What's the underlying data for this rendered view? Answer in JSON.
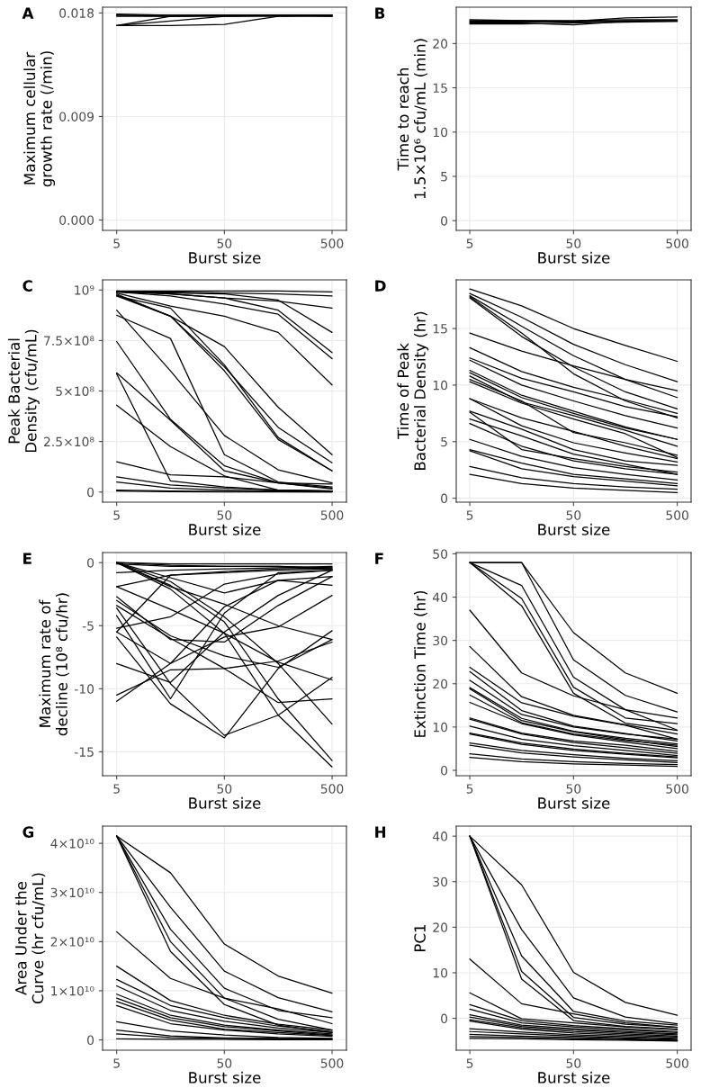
{
  "chart_data": [
    {
      "type": "line",
      "title": "A",
      "xlabel": "Burst size",
      "ylabel": "Maximum cellular\ngrowth rate (/min)",
      "log": "x",
      "grid": true,
      "x": [
        5,
        15.8,
        50,
        158,
        500
      ],
      "xlim": [
        3.7,
        680
      ],
      "xticks": [
        5,
        50,
        500
      ],
      "ylim": [
        -0.0009,
        0.0185
      ],
      "yticks": [
        {
          "value": 0,
          "label": "0.000"
        },
        0.009,
        0.018
      ],
      "series": [
        {
          "color": "#000000",
          "values": [
            0.0178,
            0.0178,
            0.0178,
            0.0178,
            0.0178
          ]
        },
        {
          "color": "#000000",
          "values": [
            0.0177,
            0.0177,
            0.0178,
            0.0178,
            0.0178
          ]
        },
        {
          "color": "#000000",
          "values": [
            0.0178,
            0.0177,
            0.0177,
            0.0177,
            0.0177
          ]
        },
        {
          "color": "#000000",
          "values": [
            0.0169,
            0.0177,
            0.0178,
            0.0178,
            0.0178
          ]
        },
        {
          "color": "#000000",
          "values": [
            0.0169,
            0.0169,
            0.017,
            0.0177,
            0.0178
          ]
        },
        {
          "color": "#000000",
          "values": [
            0.0169,
            0.0173,
            0.0177,
            0.0178,
            0.0178
          ]
        },
        {
          "color": "#000000",
          "values": [
            0.0179,
            0.0178,
            0.0178,
            0.0178,
            0.0177
          ]
        }
      ]
    },
    {
      "type": "line",
      "title": "B",
      "xlabel": "Burst size",
      "ylabel": "Time to reach\n1.5×10⁶ cfu/mL (min)",
      "log": "x",
      "grid": true,
      "x": [
        5,
        15.8,
        50,
        158,
        500
      ],
      "xlim": [
        3.7,
        680
      ],
      "xticks": [
        5,
        50,
        500
      ],
      "ylim": [
        -1.1,
        24.1
      ],
      "yticks": [
        0,
        5,
        10,
        15,
        20
      ],
      "series": [
        {
          "color": "#000000",
          "values": [
            22.7,
            22.6,
            22.6,
            22.7,
            22.7
          ]
        },
        {
          "color": "#000000",
          "values": [
            22.5,
            22.5,
            22.4,
            22.6,
            22.6
          ]
        },
        {
          "color": "#000000",
          "values": [
            22.3,
            22.3,
            22.1,
            22.5,
            22.6
          ]
        },
        {
          "color": "#000000",
          "values": [
            22.6,
            22.6,
            22.5,
            22.9,
            23.0
          ]
        },
        {
          "color": "#000000",
          "values": [
            22.4,
            22.4,
            22.5,
            22.5,
            22.5
          ]
        },
        {
          "color": "#000000",
          "values": [
            22.2,
            22.2,
            22.3,
            22.4,
            22.5
          ]
        }
      ]
    },
    {
      "type": "line",
      "title": "C",
      "xlabel": "Burst size",
      "ylabel": "Peak Bacterial\nDensity (cfu/mL)",
      "log": "x",
      "grid": true,
      "x": [
        5,
        15.8,
        50,
        158,
        500
      ],
      "xlim": [
        3.7,
        680
      ],
      "xticks": [
        5,
        50,
        500
      ],
      "ylim": [
        -50000000.0,
        1050000000.0
      ],
      "yticks": [
        0,
        {
          "value": 250000000.0,
          "label": "2.5×10⁸"
        },
        {
          "value": 500000000.0,
          "label": "5×10⁸"
        },
        {
          "value": 750000000.0,
          "label": "7.5×10⁸"
        },
        {
          "value": 1000000000.0,
          "label": "10⁹"
        }
      ],
      "series": [
        {
          "color": "#000000",
          "values": [
            995000000.0,
            995000000.0,
            995000000.0,
            995000000.0,
            990000000.0
          ]
        },
        {
          "color": "#000000",
          "values": [
            990000000.0,
            990000000.0,
            985000000.0,
            980000000.0,
            970000000.0
          ]
        },
        {
          "color": "#000000",
          "values": [
            990000000.0,
            980000000.0,
            960000000.0,
            945000000.0,
            910000000.0
          ]
        },
        {
          "color": "#000000",
          "values": [
            985000000.0,
            920000000.0,
            870000000.0,
            790000000.0,
            530000000.0
          ]
        },
        {
          "color": "#000000",
          "values": [
            980000000.0,
            870000000.0,
            720000000.0,
            420000000.0,
            185000000.0
          ]
        },
        {
          "color": "#000000",
          "values": [
            975000000.0,
            870000000.0,
            620000000.0,
            320000000.0,
            145000000.0
          ]
        },
        {
          "color": "#000000",
          "values": [
            970000000.0,
            910000000.0,
            630000000.0,
            270000000.0,
            105000000.0
          ]
        },
        {
          "color": "#000000",
          "values": [
            970000000.0,
            870000000.0,
            600000000.0,
            260000000.0,
            105000000.0
          ]
        },
        {
          "color": "#000000",
          "values": [
            990000000.0,
            970000000.0,
            930000000.0,
            880000000.0,
            660000000.0
          ]
        },
        {
          "color": "#000000",
          "values": [
            995000000.0,
            980000000.0,
            960000000.0,
            900000000.0,
            690000000.0
          ]
        },
        {
          "color": "#000000",
          "values": [
            990000000.0,
            985000000.0,
            980000000.0,
            950000000.0,
            790000000.0
          ]
        },
        {
          "color": "#000000",
          "values": [
            900000000.0,
            600000000.0,
            280000000.0,
            110000000.0,
            45000000.0
          ]
        },
        {
          "color": "#000000",
          "values": [
            875000000.0,
            760000000.0,
            185000000.0,
            50000000.0,
            25000000.0
          ]
        },
        {
          "color": "#000000",
          "values": [
            745000000.0,
            360000000.0,
            130000000.0,
            45000000.0,
            20000000.0
          ]
        },
        {
          "color": "#000000",
          "values": [
            590000000.0,
            355000000.0,
            105000000.0,
            45000000.0,
            15000000.0
          ]
        },
        {
          "color": "#000000",
          "values": [
            585000000.0,
            55000000.0,
            25000000.0,
            10000000.0,
            5000000.0
          ]
        },
        {
          "color": "#000000",
          "values": [
            430000000.0,
            225000000.0,
            80000000.0,
            10000000.0,
            5000000.0
          ]
        },
        {
          "color": "#000000",
          "values": [
            150000000.0,
            85000000.0,
            75000000.0,
            45000000.0,
            40000000.0
          ]
        },
        {
          "color": "#000000",
          "values": [
            75000000.0,
            35000000.0,
            20000000.0,
            10000000.0,
            5000000.0
          ]
        },
        {
          "color": "#000000",
          "values": [
            50000000.0,
            20000000.0,
            10000000.0,
            5000000.0,
            3000000.0
          ]
        },
        {
          "color": "#000000",
          "values": [
            10000000.0,
            5000000.0,
            3000000.0,
            2000000.0,
            1000000.0
          ]
        },
        {
          "color": "#000000",
          "values": [
            5000000.0,
            2000000.0,
            1000000.0,
            1000000.0,
            1000000.0
          ]
        }
      ]
    },
    {
      "type": "line",
      "title": "D",
      "xlabel": "Burst size",
      "ylabel": "Time of Peak\nBacterial Density (hr)",
      "log": "x",
      "grid": true,
      "x": [
        5,
        15.8,
        50,
        158,
        500
      ],
      "xlim": [
        3.7,
        680
      ],
      "xticks": [
        5,
        50,
        500
      ],
      "ylim": [
        -0.35,
        19.3
      ],
      "yticks": [
        0,
        5,
        10,
        15
      ],
      "series": [
        {
          "color": "#000000",
          "values": [
            18.5,
            17.0,
            15.0,
            13.5,
            12.1
          ]
        },
        {
          "color": "#000000",
          "values": [
            18.1,
            16.0,
            13.6,
            11.8,
            10.3
          ]
        },
        {
          "color": "#000000",
          "values": [
            17.9,
            15.2,
            12.6,
            10.5,
            9.5
          ]
        },
        {
          "color": "#000000",
          "values": [
            17.8,
            14.6,
            11.0,
            8.6,
            7.1
          ]
        },
        {
          "color": "#000000",
          "values": [
            17.7,
            14.3,
            11.6,
            9.4,
            7.9
          ]
        },
        {
          "color": "#000000",
          "values": [
            14.6,
            13.0,
            11.7,
            10.5,
            8.9
          ]
        },
        {
          "color": "#000000",
          "values": [
            13.3,
            11.2,
            9.8,
            8.7,
            7.5
          ]
        },
        {
          "color": "#000000",
          "values": [
            12.4,
            10.6,
            9.4,
            8.1,
            7.2
          ]
        },
        {
          "color": "#000000",
          "values": [
            12.2,
            10.0,
            8.6,
            7.3,
            6.2
          ]
        },
        {
          "color": "#000000",
          "values": [
            11.3,
            9.1,
            7.7,
            6.3,
            5.2
          ]
        },
        {
          "color": "#000000",
          "values": [
            11.1,
            8.9,
            7.5,
            6.2,
            5.2
          ]
        },
        {
          "color": "#000000",
          "values": [
            10.8,
            8.5,
            7.3,
            6.0,
            4.6
          ]
        },
        {
          "color": "#000000",
          "values": [
            10.5,
            8.6,
            5.8,
            4.9,
            3.8
          ]
        },
        {
          "color": "#000000",
          "values": [
            10.3,
            8.4,
            7.0,
            5.7,
            3.6
          ]
        },
        {
          "color": "#000000",
          "values": [
            8.8,
            7.1,
            5.9,
            4.6,
            3.5
          ]
        },
        {
          "color": "#000000",
          "values": [
            8.8,
            6.4,
            4.9,
            4.0,
            3.2
          ]
        },
        {
          "color": "#000000",
          "values": [
            7.7,
            6.1,
            4.3,
            3.3,
            2.9
          ]
        },
        {
          "color": "#000000",
          "values": [
            7.6,
            4.3,
            3.5,
            2.8,
            2.3
          ]
        },
        {
          "color": "#000000",
          "values": [
            7.0,
            5.5,
            3.9,
            3.0,
            2.1
          ]
        },
        {
          "color": "#000000",
          "values": [
            6.6,
            4.6,
            3.3,
            2.6,
            2.1
          ]
        },
        {
          "color": "#000000",
          "values": [
            5.2,
            3.7,
            2.7,
            2.1,
            1.6
          ]
        },
        {
          "color": "#000000",
          "values": [
            4.3,
            3.1,
            2.1,
            1.7,
            1.3
          ]
        },
        {
          "color": "#000000",
          "values": [
            4.2,
            2.6,
            1.9,
            1.5,
            1.1
          ]
        },
        {
          "color": "#000000",
          "values": [
            2.8,
            1.8,
            1.3,
            1.0,
            0.8
          ]
        },
        {
          "color": "#000000",
          "values": [
            2.1,
            1.3,
            0.9,
            0.7,
            0.5
          ]
        }
      ]
    },
    {
      "type": "line",
      "title": "E",
      "xlabel": "Burst size",
      "ylabel": "Maximum rate of\ndecline (10⁸ cfu/hr)",
      "log": "x",
      "grid": true,
      "x": [
        5,
        15.8,
        50,
        158,
        500
      ],
      "xlim": [
        3.7,
        680
      ],
      "xticks": [
        5,
        50,
        500
      ],
      "ylim": [
        -16.9,
        0.8
      ],
      "yticks": [
        {
          "value": -15,
          "label": "-15"
        },
        {
          "value": -10,
          "label": "-10"
        },
        {
          "value": -5,
          "label": "-5"
        },
        0
      ],
      "series": [
        {
          "color": "#000000",
          "values": [
            0,
            -0.1,
            -0.1,
            -0.1,
            -0.1
          ]
        },
        {
          "color": "#000000",
          "values": [
            0,
            -0.2,
            -0.3,
            -0.3,
            -0.4
          ]
        },
        {
          "color": "#000000",
          "values": [
            -0.1,
            -0.3,
            -0.3,
            -0.3,
            -0.5
          ]
        },
        {
          "color": "#000000",
          "values": [
            -0.8,
            -0.6,
            -0.5,
            -0.4,
            -0.3
          ]
        },
        {
          "color": "#000000",
          "values": [
            0,
            -1.9,
            -3.3,
            -5.0,
            -6.1
          ]
        },
        {
          "color": "#000000",
          "values": [
            0,
            -2.1,
            -5.6,
            -12.1,
            -16.2
          ]
        },
        {
          "color": "#000000",
          "values": [
            0,
            -1.8,
            -4.7,
            -10.8,
            -15.7
          ]
        },
        {
          "color": "#000000",
          "values": [
            0,
            -1.5,
            -4.3,
            -8.0,
            -12.8
          ]
        },
        {
          "color": "#000000",
          "values": [
            0,
            -1.2,
            -2.4,
            -1.4,
            -1.8
          ]
        },
        {
          "color": "#000000",
          "values": [
            -11.0,
            -8.0,
            -3.5,
            -1.4,
            -1.1
          ]
        },
        {
          "color": "#000000",
          "values": [
            -10.5,
            -8.5,
            -8.4,
            -7.8,
            -6.3
          ]
        },
        {
          "color": "#000000",
          "values": [
            -8.0,
            -9.5,
            -5.5,
            -2.6,
            -0.6
          ]
        },
        {
          "color": "#000000",
          "values": [
            -5.9,
            -11.2,
            -13.9,
            -8.4,
            -5.4
          ]
        },
        {
          "color": "#000000",
          "values": [
            -4.2,
            -10.8,
            -4.0,
            -0.8,
            -0.6
          ]
        },
        {
          "color": "#000000",
          "values": [
            -3.6,
            -9.6,
            -13.7,
            -12.1,
            -9.1
          ]
        },
        {
          "color": "#000000",
          "values": [
            -5.2,
            -4.3,
            -1.7,
            -0.9,
            -0.6
          ]
        },
        {
          "color": "#000000",
          "values": [
            -5.5,
            -1.0,
            -0.7,
            -0.5,
            -0.4
          ]
        },
        {
          "color": "#000000",
          "values": [
            -1.9,
            -1.0,
            -0.8,
            -0.6,
            -0.5
          ]
        },
        {
          "color": "#000000",
          "values": [
            -1.9,
            -3.7,
            -5.6,
            -7.9,
            -9.3
          ]
        },
        {
          "color": "#000000",
          "values": [
            -2.7,
            -6.1,
            -6.3,
            -3.4,
            -1.1
          ]
        },
        {
          "color": "#000000",
          "values": [
            -3.0,
            -5.8,
            -7.4,
            -8.3,
            -6.1
          ]
        },
        {
          "color": "#000000",
          "values": [
            -3.4,
            -6.0,
            -8.4,
            -11.1,
            -10.8
          ]
        },
        {
          "color": "#000000",
          "values": [
            -5.5,
            -8.0,
            -5.9,
            -5.1,
            -2.6
          ]
        }
      ]
    },
    {
      "type": "line",
      "title": "F",
      "xlabel": "Burst size",
      "ylabel": "Extinction Time (hr)",
      "log": "x",
      "grid": true,
      "x": [
        5,
        15.8,
        50,
        158,
        500
      ],
      "xlim": [
        3.7,
        680
      ],
      "xticks": [
        5,
        50,
        500
      ],
      "ylim": [
        -1.25,
        50.3
      ],
      "yticks": [
        0,
        10,
        20,
        30,
        40,
        50
      ],
      "series": [
        {
          "color": "#000000",
          "values": [
            48,
            48,
            31.8,
            22.5,
            17.8
          ]
        },
        {
          "color": "#000000",
          "values": [
            48,
            48,
            25.5,
            17.3,
            13.5
          ]
        },
        {
          "color": "#000000",
          "values": [
            48,
            42.7,
            21.5,
            14.0,
            12.1
          ]
        },
        {
          "color": "#000000",
          "values": [
            48,
            39.7,
            19.2,
            12.1,
            10.8
          ]
        },
        {
          "color": "#000000",
          "values": [
            48,
            38.0,
            17.8,
            10.9,
            9.2
          ]
        },
        {
          "color": "#000000",
          "values": [
            37.0,
            22.5,
            17.2,
            14.0,
            9.3
          ]
        },
        {
          "color": "#000000",
          "values": [
            28.6,
            17.0,
            12.7,
            10.5,
            8.4
          ]
        },
        {
          "color": "#000000",
          "values": [
            23.8,
            15.6,
            12.5,
            10.4,
            7.2
          ]
        },
        {
          "color": "#000000",
          "values": [
            22.8,
            13.8,
            10.2,
            8.5,
            6.8
          ]
        },
        {
          "color": "#000000",
          "values": [
            20.8,
            12.9,
            10.0,
            8.4,
            7.2
          ]
        },
        {
          "color": "#000000",
          "values": [
            19.1,
            12.0,
            9.0,
            7.4,
            6.1
          ]
        },
        {
          "color": "#000000",
          "values": [
            18.8,
            11.5,
            8.9,
            7.1,
            5.5
          ]
        },
        {
          "color": "#000000",
          "values": [
            17.4,
            11.0,
            8.4,
            6.9,
            5.8
          ]
        },
        {
          "color": "#000000",
          "values": [
            15.7,
            10.8,
            8.2,
            6.5,
            5.0
          ]
        },
        {
          "color": "#000000",
          "values": [
            12.1,
            8.6,
            6.8,
            5.8,
            4.4
          ]
        },
        {
          "color": "#000000",
          "values": [
            11.8,
            8.4,
            6.4,
            5.2,
            3.9
          ]
        },
        {
          "color": "#000000",
          "values": [
            10.2,
            7.2,
            5.7,
            4.6,
            3.4
          ]
        },
        {
          "color": "#000000",
          "values": [
            8.6,
            6.3,
            4.9,
            3.9,
            3.1
          ]
        },
        {
          "color": "#000000",
          "values": [
            8.4,
            6.0,
            4.6,
            3.7,
            2.9
          ]
        },
        {
          "color": "#000000",
          "values": [
            6.3,
            4.6,
            3.6,
            2.8,
            2.2
          ]
        },
        {
          "color": "#000000",
          "values": [
            5.8,
            4.0,
            3.1,
            2.4,
            1.8
          ]
        },
        {
          "color": "#000000",
          "values": [
            3.8,
            2.6,
            2.0,
            1.6,
            1.3
          ]
        },
        {
          "color": "#000000",
          "values": [
            3.0,
            2.0,
            1.5,
            1.2,
            0.9
          ]
        }
      ]
    },
    {
      "type": "line",
      "title": "G",
      "xlabel": "Burst size",
      "ylabel": "Area Under the\nCurve (hr cfu/mL)",
      "log": "x",
      "grid": true,
      "x": [
        5,
        15.8,
        50,
        158,
        500
      ],
      "xlim": [
        3.7,
        680
      ],
      "xticks": [
        5,
        50,
        500
      ],
      "ylim": [
        -2100000000.0,
        43500000000.0
      ],
      "yticks": [
        0,
        {
          "value": 10000000000.0,
          "label": "1×10¹⁰"
        },
        {
          "value": 20000000000.0,
          "label": "2×10¹⁰"
        },
        {
          "value": 30000000000.0,
          "label": "3×10¹⁰"
        },
        {
          "value": 40000000000.0,
          "label": "4×10¹⁰"
        }
      ],
      "series": [
        {
          "color": "#000000",
          "values": [
            41500000000.0,
            34000000000.0,
            19500000000.0,
            13000000000.0,
            9500000000.0
          ]
        },
        {
          "color": "#000000",
          "values": [
            41500000000.0,
            27000000000.0,
            14000000000.0,
            8600000000.0,
            5700000000.0
          ]
        },
        {
          "color": "#000000",
          "values": [
            41500000000.0,
            22500000000.0,
            10500000000.0,
            6000000000.0,
            4500000000.0
          ]
        },
        {
          "color": "#000000",
          "values": [
            41500000000.0,
            20000000000.0,
            8500000000.0,
            4200000000.0,
            2000000000.0
          ]
        },
        {
          "color": "#000000",
          "values": [
            41500000000.0,
            18000000000.0,
            7200000000.0,
            3000000000.0,
            1500000000.0
          ]
        },
        {
          "color": "#000000",
          "values": [
            22000000000.0,
            12500000000.0,
            8500000000.0,
            6300000000.0,
            3300000000.0
          ]
        },
        {
          "color": "#000000",
          "values": [
            15000000000.0,
            8000000000.0,
            5000000000.0,
            3200000000.0,
            2000000000.0
          ]
        },
        {
          "color": "#000000",
          "values": [
            12300000000.0,
            7000000000.0,
            4500000000.0,
            2800000000.0,
            1700000000.0
          ]
        },
        {
          "color": "#000000",
          "values": [
            11000000000.0,
            6000000000.0,
            3800000000.0,
            2400000000.0,
            1500000000.0
          ]
        },
        {
          "color": "#000000",
          "values": [
            9300000000.0,
            5000000000.0,
            3000000000.0,
            2000000000.0,
            1200000000.0
          ]
        },
        {
          "color": "#000000",
          "values": [
            8500000000.0,
            4500000000.0,
            2700000000.0,
            1800000000.0,
            1000000000.0
          ]
        },
        {
          "color": "#000000",
          "values": [
            7800000000.0,
            4000000000.0,
            2200000000.0,
            1500000000.0,
            900000000.0
          ]
        },
        {
          "color": "#000000",
          "values": [
            7000000000.0,
            3300000000.0,
            2000000000.0,
            1200000000.0,
            700000000.0
          ]
        },
        {
          "color": "#000000",
          "values": [
            3700000000.0,
            1800000000.0,
            1000000000.0,
            500000000.0,
            300000000.0
          ]
        },
        {
          "color": "#000000",
          "values": [
            2000000000.0,
            800000000.0,
            400000000.0,
            300000000.0,
            200000000.0
          ]
        },
        {
          "color": "#000000",
          "values": [
            1200000000.0,
            500000000.0,
            300000000.0,
            200000000.0,
            100000000.0
          ]
        },
        {
          "color": "#000000",
          "values": [
            200000000.0,
            100000000.0,
            100000000.0,
            50000000.0,
            50000000.0
          ]
        }
      ]
    },
    {
      "type": "line",
      "title": "H",
      "xlabel": "Burst size",
      "ylabel": "PC1",
      "log": "x",
      "grid": true,
      "x": [
        5,
        15.8,
        50,
        158,
        500
      ],
      "xlim": [
        3.7,
        680
      ],
      "xticks": [
        5,
        50,
        500
      ],
      "ylim": [
        -7.0,
        42.2
      ],
      "yticks": [
        0,
        10,
        20,
        30,
        40
      ],
      "series": [
        {
          "color": "#000000",
          "values": [
            40,
            29.3,
            10.1,
            3.5,
            0.7
          ]
        },
        {
          "color": "#000000",
          "values": [
            40,
            19.5,
            4.5,
            0.3,
            -1.2
          ]
        },
        {
          "color": "#000000",
          "values": [
            40,
            13.7,
            1.5,
            -0.6,
            -1.5
          ]
        },
        {
          "color": "#000000",
          "values": [
            40,
            10.3,
            0.2,
            -1.3,
            -2.0
          ]
        },
        {
          "color": "#000000",
          "values": [
            40,
            8.6,
            -0.5,
            -1.8,
            -2.4
          ]
        },
        {
          "color": "#000000",
          "values": [
            13.0,
            3.2,
            1.0,
            -1.0,
            -2.0
          ]
        },
        {
          "color": "#000000",
          "values": [
            5.6,
            -0.1,
            -1.0,
            -1.9,
            -2.5
          ]
        },
        {
          "color": "#000000",
          "values": [
            3.0,
            -0.5,
            -1.6,
            -2.3,
            -2.9
          ]
        },
        {
          "color": "#000000",
          "values": [
            2.0,
            -1.0,
            -1.9,
            -2.6,
            -3.1
          ]
        },
        {
          "color": "#000000",
          "values": [
            0.8,
            -1.5,
            -2.3,
            -2.9,
            -3.4
          ]
        },
        {
          "color": "#000000",
          "values": [
            0.3,
            -1.8,
            -2.6,
            -3.1,
            -3.6
          ]
        },
        {
          "color": "#000000",
          "values": [
            -0.3,
            -2.1,
            -2.9,
            -3.4,
            -3.9
          ]
        },
        {
          "color": "#000000",
          "values": [
            -0.6,
            -2.4,
            -3.2,
            -3.7,
            -4.1
          ]
        },
        {
          "color": "#000000",
          "values": [
            -2.3,
            -3.0,
            -3.6,
            -4.0,
            -4.4
          ]
        },
        {
          "color": "#000000",
          "values": [
            -2.9,
            -3.4,
            -3.9,
            -4.3,
            -4.6
          ]
        },
        {
          "color": "#000000",
          "values": [
            -3.5,
            -3.9,
            -4.2,
            -4.5,
            -4.8
          ]
        },
        {
          "color": "#000000",
          "values": [
            -4.0,
            -4.2,
            -4.5,
            -4.7,
            -4.9
          ]
        },
        {
          "color": "#000000",
          "values": [
            -4.4,
            -4.5,
            -4.7,
            -4.8,
            -5.0
          ]
        }
      ]
    }
  ]
}
